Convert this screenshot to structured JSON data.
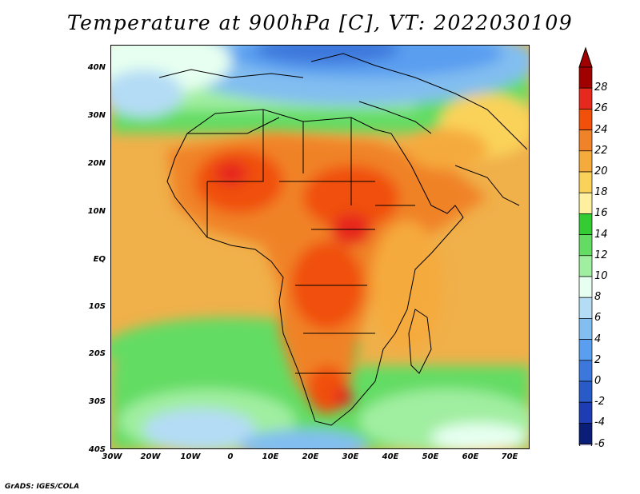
{
  "title": "Temperature at 900hPa [C], VT: 2022030109",
  "credit": "GrADS: IGES/COLA",
  "map": {
    "lat_labels": [
      "40N",
      "30N",
      "20N",
      "10N",
      "EQ",
      "10S",
      "20S",
      "30S",
      "40S"
    ],
    "lon_labels": [
      "30W",
      "20W",
      "10W",
      "0",
      "10E",
      "20E",
      "30E",
      "40E",
      "50E",
      "60E",
      "70E"
    ]
  },
  "colorbar": {
    "labels": [
      "28",
      "26",
      "24",
      "22",
      "20",
      "18",
      "16",
      "14",
      "12",
      "10",
      "8",
      "6",
      "4",
      "2",
      "0",
      "-2",
      "-4",
      "-6"
    ],
    "colors": [
      "#a00000",
      "#e6281e",
      "#f0500a",
      "#f08228",
      "#f5aa3c",
      "#fad25a",
      "#fff0a0",
      "#33cc33",
      "#64dc64",
      "#a0eea0",
      "#e6fff0",
      "#b4dcf5",
      "#82bef0",
      "#5a9ef0",
      "#3c78dc",
      "#285ac8",
      "#1e3cb4",
      "#0a1e78"
    ]
  },
  "chart_data": {
    "type": "heatmap",
    "title": "Temperature at 900hPa [C], VT: 2022030109",
    "variable": "Temperature at 900hPa",
    "units": "C",
    "valid_time": "2022030109",
    "lon_range": [
      -30,
      75
    ],
    "lat_range": [
      -40,
      45
    ],
    "color_scale_min": -6,
    "color_scale_max": 28,
    "color_scale_step": 2,
    "colorbar_ticks": [
      28,
      26,
      24,
      22,
      20,
      18,
      16,
      14,
      12,
      10,
      8,
      6,
      4,
      2,
      0,
      -2,
      -4,
      -6
    ]
  }
}
